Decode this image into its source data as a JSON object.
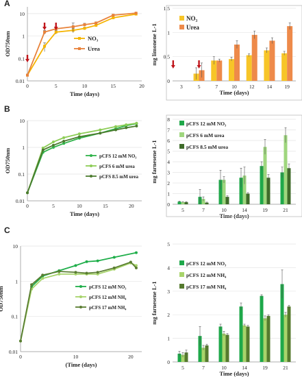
{
  "panels": [
    {
      "letter": "A"
    },
    {
      "letter": "B"
    },
    {
      "letter": "C"
    }
  ],
  "chart_data": [
    {
      "id": "A-left",
      "type": "line",
      "ylabel": "OD750nm",
      "xlabel": "Time (days)",
      "yscale": "log",
      "ylim": [
        0.01,
        20
      ],
      "xlim": [
        0,
        20
      ],
      "yticks": [
        "0.01",
        "0.1",
        "1",
        "10"
      ],
      "xticks": [
        0,
        5,
        10,
        15,
        20
      ],
      "legend_position": "center-right",
      "arrows_at_x": [
        0,
        3,
        5
      ],
      "series": [
        {
          "name": "NO₃",
          "color": "#f5b400",
          "x": [
            0,
            3,
            5,
            8,
            10,
            12,
            15,
            19
          ],
          "y": [
            0.018,
            0.35,
            1.5,
            1.8,
            2.2,
            3.0,
            6.5,
            9.5
          ],
          "err": [
            0.002,
            0.15,
            0.3,
            0.4,
            0.3,
            0.4,
            0.6,
            0.8
          ]
        },
        {
          "name": "Urea",
          "color": "#e8823a",
          "x": [
            0,
            3,
            5,
            8,
            10,
            12,
            15,
            19
          ],
          "y": [
            0.018,
            1.5,
            2.1,
            2.6,
            3.2,
            3.8,
            8.5,
            10.5
          ],
          "err": [
            0.002,
            0.3,
            0.3,
            1.2,
            0.5,
            0.5,
            0.8,
            0.8
          ]
        }
      ]
    },
    {
      "id": "A-right",
      "type": "bar",
      "ylabel": "mg limonene L-1",
      "xlabel": "Time (days)",
      "ylim": [
        0,
        1.5
      ],
      "yticks": [
        "0",
        "0.5",
        "1",
        "1.5"
      ],
      "categories": [
        "3",
        "5",
        "7",
        "10",
        "12",
        "14",
        "19"
      ],
      "legend_position": "top-left",
      "arrows_at_categories": [
        "3",
        "5"
      ],
      "series": [
        {
          "name": "NO₃",
          "color": "#f7c528",
          "values": [
            0,
            0.15,
            0.42,
            0.45,
            0.53,
            0.63,
            0.57
          ],
          "err": [
            0,
            0.12,
            0.08,
            0.04,
            0.03,
            0.05,
            0.04
          ]
        },
        {
          "name": "Urea",
          "color": "#ee8a4a",
          "values": [
            0,
            0.22,
            0.42,
            0.75,
            0.95,
            0.83,
            1.13
          ],
          "err": [
            0,
            0.15,
            0.03,
            0.08,
            0.08,
            0.06,
            0.07
          ]
        }
      ]
    },
    {
      "id": "B-left",
      "type": "line",
      "ylabel": "OD750nm",
      "xlabel": "Time (days)",
      "yscale": "log",
      "ylim": [
        0.01,
        10
      ],
      "xlim": [
        0,
        22
      ],
      "yticks": [
        "0.01",
        "0.1",
        "1",
        "10"
      ],
      "xticks": [
        0,
        5,
        10,
        15,
        20
      ],
      "legend_position": "center-right",
      "series": [
        {
          "name": "pCFS 12 mM NO₃",
          "color": "#2fb34a",
          "x": [
            0,
            3,
            5,
            7,
            10,
            14,
            17,
            19,
            21
          ],
          "y": [
            0.02,
            0.65,
            1.0,
            1.4,
            2.2,
            3.4,
            5.0,
            6.5,
            7.8
          ],
          "err": [
            0,
            0,
            0,
            0,
            0,
            0,
            0,
            0,
            0
          ]
        },
        {
          "name": "pCFS 6 mM urea",
          "color": "#8ccc55",
          "x": [
            0,
            3,
            5,
            7,
            10,
            14,
            17,
            19,
            21
          ],
          "y": [
            0.02,
            0.95,
            1.6,
            2.3,
            3.2,
            4.5,
            6.0,
            7.0,
            8.0
          ],
          "err": [
            0,
            0,
            0,
            0,
            0,
            0,
            0,
            0,
            0
          ]
        },
        {
          "name": "pCFS 8.5 mM urea",
          "color": "#4b7a2e",
          "x": [
            0,
            3,
            5,
            7,
            10,
            14,
            17,
            19,
            21
          ],
          "y": [
            0.02,
            0.8,
            1.2,
            1.7,
            2.5,
            3.4,
            4.5,
            5.4,
            6.3
          ],
          "err": [
            0,
            0,
            0,
            0,
            0,
            0,
            0,
            0,
            0
          ]
        }
      ]
    },
    {
      "id": "B-right",
      "type": "bar",
      "ylabel": "mg farnesene L-1",
      "xlabel": "Time (days)",
      "ylim": [
        0,
        8
      ],
      "yticks": [
        "0",
        "1",
        "2",
        "3",
        "4",
        "5",
        "6",
        "7",
        "8"
      ],
      "categories": [
        "5",
        "7",
        "10",
        "14",
        "19",
        "21"
      ],
      "legend_position": "top-left",
      "series": [
        {
          "name": "pCFS 12 mM NO₃",
          "color": "#1fa84a",
          "values": [
            0.25,
            0.7,
            2.3,
            2.5,
            3.6,
            3.0
          ],
          "err": [
            0.05,
            0.7,
            0.9,
            0.9,
            0.4,
            0.5
          ]
        },
        {
          "name": "pCFS 6 mM urea",
          "color": "#9fd67e",
          "values": [
            0.2,
            0.5,
            2.3,
            2.7,
            5.4,
            6.5
          ],
          "err": [
            0.05,
            0.2,
            0.3,
            0.8,
            0.7,
            0.7
          ]
        },
        {
          "name": "pCFS 8.5 mM urea",
          "color": "#3f6b2a",
          "values": [
            0.2,
            0.15,
            0.7,
            1.0,
            2.5,
            3.4
          ],
          "err": [
            0.05,
            0.05,
            0.1,
            0.1,
            0.3,
            0.4
          ]
        }
      ]
    },
    {
      "id": "C-left",
      "type": "line",
      "ylabel": "OD750nm",
      "xlabel": "(Time (days)",
      "yscale": "log",
      "ylim": [
        0.01,
        10
      ],
      "xlim": [
        0,
        22
      ],
      "yticks": [
        "0.01",
        "0.1",
        "1",
        "10"
      ],
      "xticks": [
        0,
        10,
        20
      ],
      "legend_position": "center-right",
      "series": [
        {
          "name": "pCFS 12 mM NO₃",
          "color": "#1fae4a",
          "x": [
            0,
            2,
            4,
            7,
            10,
            12,
            14,
            17,
            21
          ],
          "y": [
            0.02,
            0.7,
            1.4,
            2.0,
            2.8,
            3.6,
            3.8,
            4.8,
            6.5
          ],
          "err": [
            0,
            0,
            0,
            0,
            0,
            0,
            0,
            0,
            0
          ]
        },
        {
          "name": "pCFS 12 mM NH₄",
          "color": "#a6d36a",
          "x": [
            0,
            2,
            4,
            7,
            10,
            12,
            14,
            17,
            20,
            21
          ],
          "y": [
            0.02,
            0.6,
            1.2,
            1.6,
            1.6,
            1.6,
            1.6,
            2.2,
            3.3,
            2.8
          ],
          "err": [
            0,
            0,
            0,
            0,
            0,
            0,
            0,
            0,
            0,
            0
          ]
        },
        {
          "name": "pCFS 17 mM NH₄",
          "color": "#5a7d32",
          "x": [
            0,
            2,
            4,
            7,
            10,
            12,
            14,
            17,
            20,
            21
          ],
          "y": [
            0.02,
            0.8,
            1.5,
            1.9,
            1.8,
            1.7,
            1.8,
            2.4,
            3.5,
            2.4
          ],
          "err": [
            0,
            0,
            0,
            0,
            0,
            0,
            0,
            0,
            0,
            0
          ]
        }
      ]
    },
    {
      "id": "C-right",
      "type": "bar",
      "ylabel": "mg farnesene L-1",
      "xlabel": "Time (days)",
      "ylim": [
        0,
        5
      ],
      "yticks": [
        "0",
        "1",
        "2",
        "3",
        "4",
        "5"
      ],
      "categories": [
        "5",
        "7",
        "10",
        "14",
        "19",
        "21"
      ],
      "legend_position": "top-left",
      "series": [
        {
          "name": "pCFS 12 mM NO₃",
          "color": "#1ea84a",
          "values": [
            0.35,
            1.1,
            1.5,
            2.35,
            2.8,
            3.3
          ],
          "err": [
            0.1,
            0.4,
            0.1,
            0.15,
            0.05,
            0.6
          ]
        },
        {
          "name": "pCFS 12 mM NH₄",
          "color": "#a8d46b",
          "values": [
            0.3,
            0.6,
            1.2,
            1.55,
            1.85,
            2.0
          ],
          "err": [
            0.1,
            0.1,
            0.1,
            0.05,
            0.1,
            0.1
          ]
        },
        {
          "name": "pCFS 17 mM NH₄",
          "color": "#557a2e",
          "values": [
            0.4,
            0.7,
            1.15,
            1.5,
            1.95,
            2.35
          ],
          "err": [
            0.1,
            0.05,
            0.05,
            0.05,
            0.05,
            0.05
          ]
        }
      ]
    }
  ]
}
